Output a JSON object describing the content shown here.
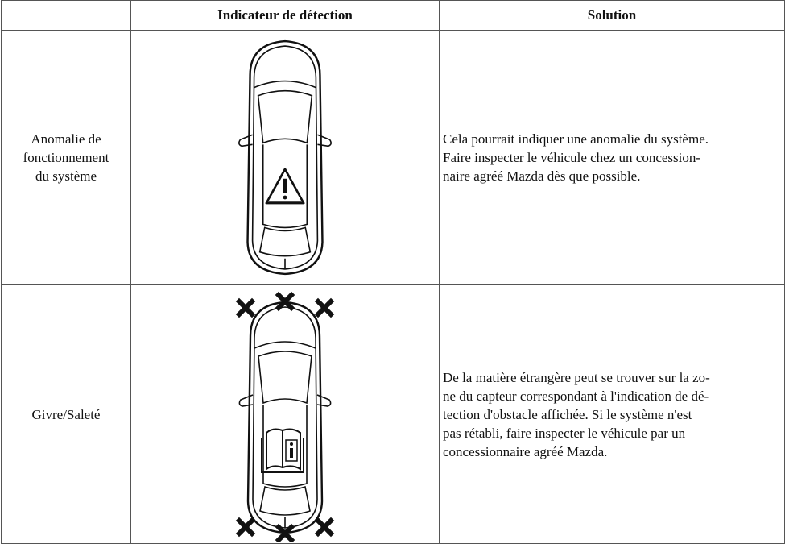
{
  "table": {
    "header": [
      "Indicateur de détection",
      "Solution"
    ],
    "rows": [
      {
        "label": [
          "Anomalie de",
          "fonctionnement",
          "du système"
        ],
        "solution": [
          "Cela pourrait indiquer une anomalie du système.",
          "Faire inspecter le véhicule chez un concession-",
          "naire agréé Mazda dès que possible."
        ]
      },
      {
        "label": [
          "Givre/Saleté"
        ],
        "solution": [
          "De la matière étrangère peut se trouver sur la zo-",
          "ne du capteur correspondant à l'indication de dé-",
          "tection d'obstacle affichée. Si le système n'est",
          "pas rétabli, faire inspecter le véhicule par un",
          "concessionnaire agréé Mazda."
        ]
      }
    ]
  }
}
